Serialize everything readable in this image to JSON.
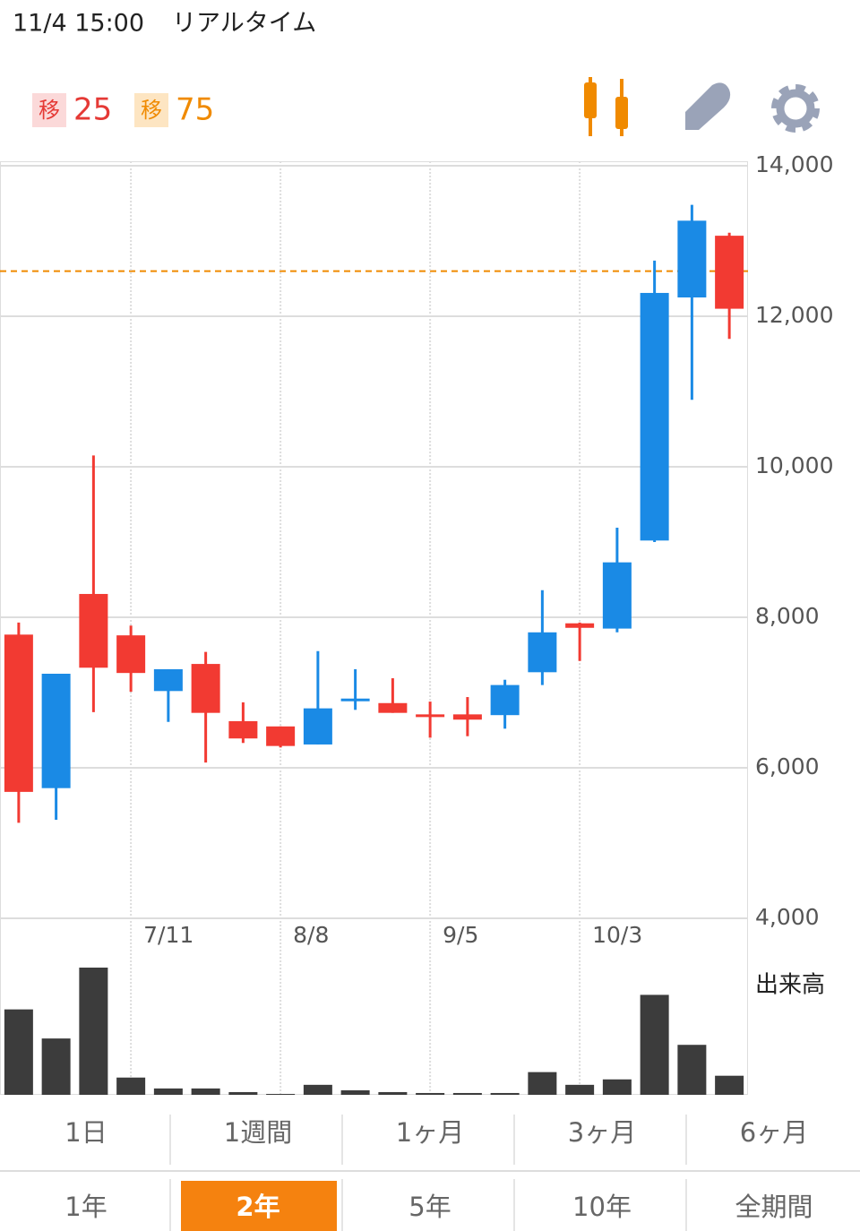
{
  "header": {
    "datetime": "11/4 15:00",
    "mode": "リアルタイム"
  },
  "legend": [
    {
      "badge": "移",
      "value": 25,
      "color": "#e53935",
      "badge_bg": "#fbd9d9"
    },
    {
      "badge": "移",
      "value": 75,
      "color": "#f08a00",
      "badge_bg": "#fde5c2"
    }
  ],
  "chart_data": {
    "type": "candlestick",
    "categories": [
      null,
      null,
      null,
      "7/11",
      null,
      null,
      null,
      "8/8",
      null,
      null,
      null,
      "9/5",
      null,
      null,
      null,
      "10/3",
      null,
      null,
      null,
      null
    ],
    "open": [
      7770,
      5730,
      8310,
      7760,
      7020,
      7380,
      6620,
      6550,
      6310,
      6900,
      6860,
      6710,
      6710,
      6700,
      7270,
      7920,
      7850,
      9020,
      12250,
      13070
    ],
    "high": [
      7930,
      7250,
      10150,
      7890,
      7310,
      7540,
      6870,
      6550,
      7550,
      7310,
      7190,
      6880,
      6940,
      7170,
      8360,
      7930,
      9190,
      12740,
      13480,
      13110
    ],
    "low": [
      5270,
      5310,
      6740,
      7010,
      6610,
      6070,
      6330,
      6270,
      6310,
      6770,
      6730,
      6400,
      6420,
      6520,
      7100,
      7420,
      7800,
      9000,
      10890,
      11700
    ],
    "close": [
      5680,
      7250,
      7330,
      7260,
      7310,
      6730,
      6390,
      6290,
      6790,
      6920,
      6730,
      6700,
      6640,
      7100,
      7800,
      7860,
      8730,
      12310,
      13270,
      12100
    ],
    "up_color": "#1a8ae5",
    "down_color": "#f23a32",
    "ylim": [
      4000,
      14000
    ],
    "yticks": [
      {
        "value": 4000,
        "label": "4,000"
      },
      {
        "value": 6000,
        "label": "6,000"
      },
      {
        "value": 8000,
        "label": "8,000"
      },
      {
        "value": 10000,
        "label": "10,000"
      },
      {
        "value": 12000,
        "label": "12,000"
      },
      {
        "value": 14000,
        "label": "14,000"
      }
    ],
    "grid": true,
    "reference_line": {
      "value": 12600,
      "color": "#f08a00"
    },
    "volume": {
      "label": "出来高",
      "color": "#3c3c3c",
      "values": [
        94,
        62,
        140,
        19,
        7,
        7,
        3,
        1,
        11,
        5,
        3,
        2,
        2,
        2,
        25,
        11,
        17,
        110,
        55,
        21
      ]
    }
  },
  "periods": [
    [
      "1日",
      "1週間",
      "1ヶ月",
      "3ヶ月",
      "6ヶ月"
    ],
    [
      "1年",
      "2年",
      "5年",
      "10年",
      "全期間"
    ]
  ],
  "selected_period": "2年"
}
